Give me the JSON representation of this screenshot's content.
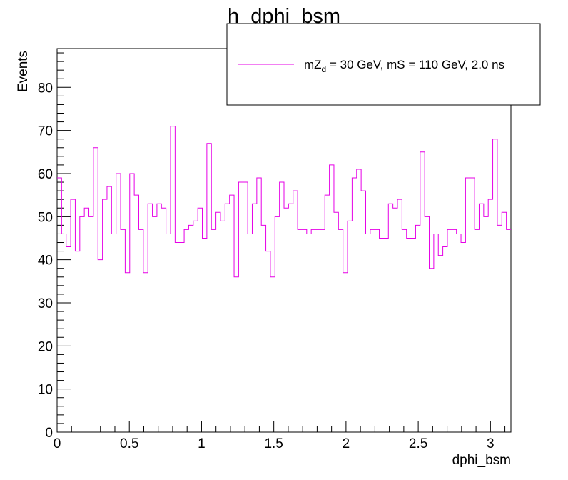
{
  "chart_data": {
    "type": "histogram",
    "title": "h_dphi_bsm",
    "xlabel": "dphi_bsm",
    "ylabel": "Events",
    "xlim": [
      0,
      3.1416
    ],
    "ylim": [
      0,
      89
    ],
    "x_ticks": [
      "0",
      "0.5",
      "1",
      "1.5",
      "2",
      "2.5",
      "3"
    ],
    "y_ticks": [
      "0",
      "10",
      "20",
      "30",
      "40",
      "50",
      "60",
      "70",
      "80"
    ],
    "x_tick_values": [
      0,
      0.5,
      1,
      1.5,
      2,
      2.5,
      3
    ],
    "y_tick_values": [
      0,
      10,
      20,
      30,
      40,
      50,
      60,
      70,
      80
    ],
    "grid": false,
    "legend_position": "top-right",
    "series": [
      {
        "name": "mZ_d = 30 GeV, mS = 110 GeV, 2.0 ns",
        "color": "#e600e6",
        "bins": 100,
        "values": [
          59,
          46,
          43,
          54,
          42,
          50,
          52,
          50,
          66,
          40,
          54,
          57,
          46,
          60,
          47,
          37,
          60,
          55,
          47,
          37,
          53,
          50,
          53,
          52,
          46,
          71,
          44,
          44,
          47,
          48,
          49,
          52,
          45,
          67,
          47,
          51,
          49,
          53,
          55,
          36,
          58,
          58,
          46,
          53,
          59,
          48,
          42,
          36,
          50,
          58,
          52,
          53,
          56,
          47,
          47,
          46,
          47,
          47,
          47,
          55,
          62,
          51,
          47,
          37,
          49,
          59,
          61,
          56,
          46,
          47,
          47,
          45,
          45,
          53,
          52,
          54,
          47,
          45,
          45,
          48,
          65,
          50,
          38,
          46,
          41,
          43,
          47,
          47,
          46,
          44,
          59,
          59,
          47,
          53,
          50,
          54,
          68,
          48,
          51,
          47
        ]
      }
    ]
  },
  "legend": {
    "label_prefix": "mZ",
    "label_sub": "d",
    "label_rest": " = 30 GeV, mS = 110 GeV, 2.0 ns"
  }
}
